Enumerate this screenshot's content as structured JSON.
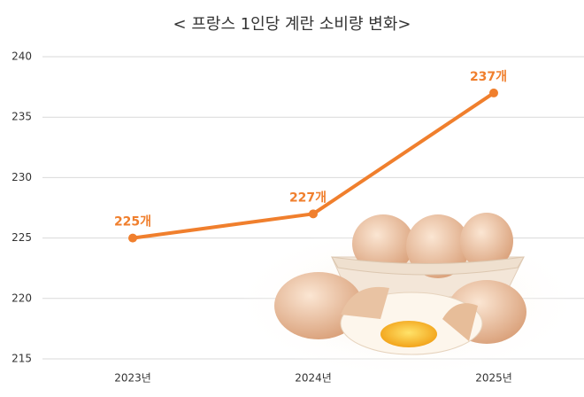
{
  "chart_data": {
    "type": "line",
    "title": "< 프랑스 1인당 계란 소비량 변화>",
    "categories": [
      "2023년",
      "2024년",
      "2025년"
    ],
    "series": [
      {
        "name": "1인당 계란 소비량",
        "color": "#f07f2d",
        "values": [
          225,
          227,
          237
        ],
        "value_labels": [
          "225개",
          "227개",
          "237개"
        ]
      }
    ],
    "ylim": [
      215,
      240
    ],
    "yticks": [
      215,
      220,
      225,
      230,
      235,
      240
    ],
    "grid": true
  }
}
